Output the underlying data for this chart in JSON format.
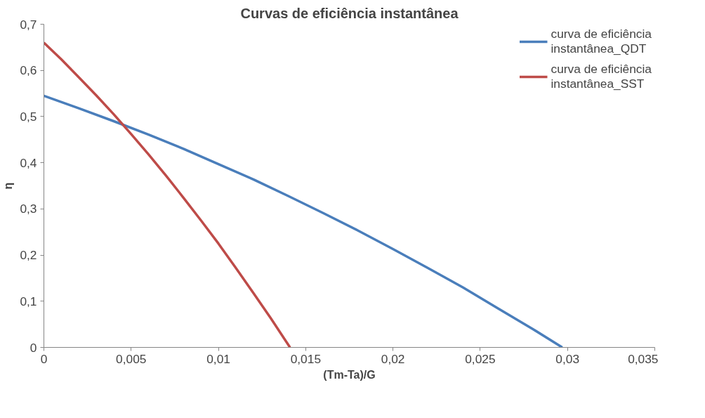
{
  "chart_data": {
    "type": "line",
    "title": "Curvas de eficiência instantânea",
    "xlabel": "(Tm-Ta)/G",
    "ylabel": "η",
    "xlim": [
      0,
      0.035
    ],
    "ylim": [
      0,
      0.7
    ],
    "xticks": [
      0,
      {
        "value": 0.005,
        "label": "0,005"
      },
      {
        "value": 0.01,
        "label": "0,01"
      },
      {
        "value": 0.015,
        "label": "0,015"
      },
      {
        "value": 0.02,
        "label": "0,02"
      },
      {
        "value": 0.025,
        "label": "0,025"
      },
      {
        "value": 0.03,
        "label": "0,03"
      },
      {
        "value": 0.035,
        "label": "0,035"
      }
    ],
    "yticks": [
      0,
      {
        "value": 0.1,
        "label": "0,1"
      },
      {
        "value": 0.2,
        "label": "0,2"
      },
      {
        "value": 0.3,
        "label": "0,3"
      },
      {
        "value": 0.4,
        "label": "0,4"
      },
      {
        "value": 0.5,
        "label": "0,5"
      },
      {
        "value": 0.6,
        "label": "0,6"
      },
      {
        "value": 0.7,
        "label": "0,7"
      }
    ],
    "grid": false,
    "legend": "top right",
    "marker": "none",
    "line_style": "solid",
    "series": [
      {
        "name": "curva de eficiência instantânea_QDT",
        "color": "#4a7ebb",
        "x": [
          0,
          0.002,
          0.004,
          0.006,
          0.008,
          0.01,
          0.012,
          0.014,
          0.016,
          0.018,
          0.02,
          0.022,
          0.024,
          0.026,
          0.028,
          0.0297
        ],
        "values": [
          0.545,
          0.518,
          0.49,
          0.461,
          0.43,
          0.397,
          0.364,
          0.328,
          0.291,
          0.253,
          0.213,
          0.172,
          0.13,
          0.085,
          0.04,
          0.0
        ]
      },
      {
        "name": "curva de eficiência instantânea_SST",
        "color": "#be4b48",
        "x": [
          0,
          0.001,
          0.002,
          0.003,
          0.004,
          0.005,
          0.006,
          0.007,
          0.008,
          0.009,
          0.01,
          0.011,
          0.012,
          0.013,
          0.0141
        ],
        "values": [
          0.66,
          0.624,
          0.585,
          0.546,
          0.505,
          0.462,
          0.418,
          0.372,
          0.324,
          0.275,
          0.225,
          0.172,
          0.118,
          0.063,
          0.0
        ]
      }
    ]
  }
}
